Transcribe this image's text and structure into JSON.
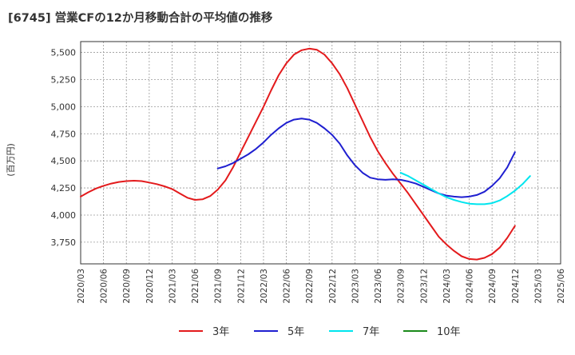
{
  "chart_data": {
    "type": "line",
    "title": "[6745]  営業CFの12か月移動合計の平均値の推移",
    "ylabel": "(百万円)",
    "xlabel": "",
    "ylim": [
      3550,
      5600
    ],
    "yticks": [
      3750,
      4000,
      4250,
      4500,
      4750,
      5000,
      5250,
      5500
    ],
    "ytick_labels": [
      "3,750",
      "4,000",
      "4,250",
      "4,500",
      "4,750",
      "5,000",
      "5,250",
      "5,500"
    ],
    "xtick_labels": [
      "2020/03",
      "2020/06",
      "2020/09",
      "2020/12",
      "2021/03",
      "2021/06",
      "2021/09",
      "2021/12",
      "2022/03",
      "2022/06",
      "2022/09",
      "2022/12",
      "2023/03",
      "2023/06",
      "2023/09",
      "2023/12",
      "2024/03",
      "2024/06",
      "2024/09",
      "2024/12",
      "2025/03",
      "2025/06"
    ],
    "grid": true,
    "legend_position": "bottom",
    "series": [
      {
        "name": "3年",
        "color": "#e31a1c",
        "start_index": 0,
        "values": [
          4170,
          4210,
          4245,
          4270,
          4290,
          4305,
          4313,
          4317,
          4313,
          4300,
          4285,
          4265,
          4240,
          4200,
          4160,
          4140,
          4145,
          4175,
          4235,
          4320,
          4440,
          4580,
          4720,
          4860,
          5000,
          5150,
          5290,
          5400,
          5480,
          5520,
          5535,
          5525,
          5480,
          5400,
          5300,
          5170,
          5020,
          4870,
          4720,
          4590,
          4480,
          4380,
          4290,
          4200,
          4100,
          4000,
          3900,
          3800,
          3730,
          3670,
          3620,
          3595,
          3590,
          3605,
          3640,
          3700,
          3790,
          3900
        ]
      },
      {
        "name": "5年",
        "color": "#1f1fd0",
        "start_index": 18,
        "values": [
          4430,
          4450,
          4480,
          4520,
          4560,
          4610,
          4670,
          4740,
          4800,
          4850,
          4880,
          4890,
          4880,
          4850,
          4800,
          4740,
          4660,
          4550,
          4460,
          4390,
          4345,
          4330,
          4325,
          4330,
          4325,
          4310,
          4290,
          4260,
          4230,
          4200,
          4180,
          4170,
          4165,
          4170,
          4185,
          4215,
          4270,
          4340,
          4440,
          4580
        ]
      },
      {
        "name": "7年",
        "color": "#00e5ee",
        "start_index": 42,
        "values": [
          4390,
          4360,
          4320,
          4280,
          4240,
          4200,
          4165,
          4140,
          4120,
          4105,
          4100,
          4100,
          4110,
          4135,
          4175,
          4225,
          4285,
          4360
        ]
      },
      {
        "name": "10年",
        "color": "#1a8a1a",
        "start_index": 0,
        "values": []
      }
    ]
  }
}
